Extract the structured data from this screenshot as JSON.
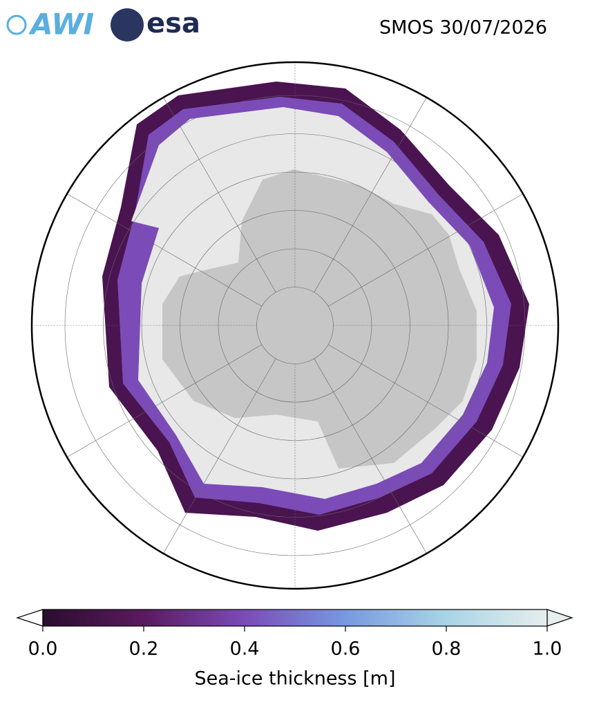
{
  "header": {
    "logos": [
      "AWI",
      "esa"
    ],
    "title": "SMOS 30/07/2026"
  },
  "colorbar": {
    "label": "Sea-ice thickness [m]",
    "lim": [
      0,
      1
    ],
    "ticks": [
      {
        "value": 0,
        "label": "0.0"
      },
      {
        "value": 0.2,
        "label": "0.2"
      },
      {
        "value": 0.4,
        "label": "0.4"
      },
      {
        "value": 0.6,
        "label": "0.6"
      },
      {
        "value": 0.8,
        "label": "0.8"
      },
      {
        "value": 1,
        "label": "1.0"
      }
    ],
    "colors": [
      "#2a0d2e",
      "#5a1a5e",
      "#7b4bb8",
      "#7799e0",
      "#a8d4e6",
      "#e6eeee"
    ]
  }
}
